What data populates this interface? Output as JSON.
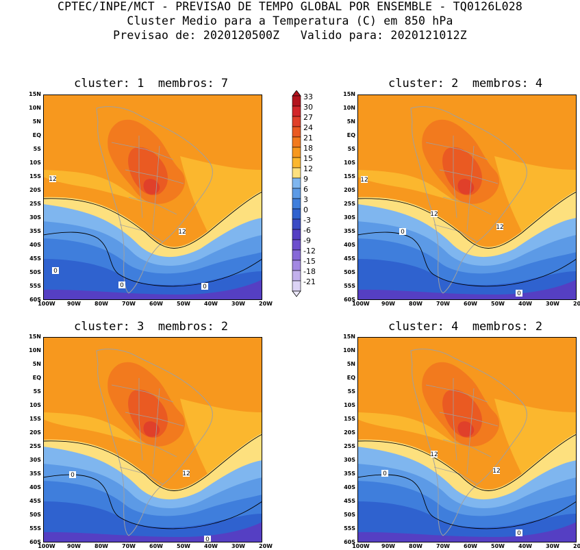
{
  "header": {
    "line1": "CPTEC/INPE/MCT - PREVISAO DE TEMPO GLOBAL POR ENSEMBLE - TQ0126L028",
    "line2": "Cluster Medio para a Temperatura (C) em 850 hPa",
    "line3": "Previsao de: 2020120500Z   Valido para: 2020121012Z"
  },
  "panels": [
    {
      "title": "cluster: 1  membros: 7",
      "contour_labels": [
        "12",
        "12",
        "0",
        "0",
        "0"
      ]
    },
    {
      "title": "cluster: 2  membros: 4",
      "contour_labels": [
        "12",
        "12",
        "12",
        "0",
        "0"
      ]
    },
    {
      "title": "cluster: 3  membros: 2",
      "contour_labels": [
        "12",
        "0",
        "0"
      ]
    },
    {
      "title": "cluster: 4  membros: 2",
      "contour_labels": [
        "12",
        "12",
        "0",
        "0"
      ]
    }
  ],
  "latitude_ticks": [
    "15N",
    "10N",
    "5N",
    "EQ",
    "5S",
    "10S",
    "15S",
    "20S",
    "25S",
    "30S",
    "35S",
    "40S",
    "45S",
    "50S",
    "55S",
    "60S"
  ],
  "longitude_ticks": [
    "100W",
    "90W",
    "80W",
    "70W",
    "60W",
    "50W",
    "40W",
    "30W",
    "20W"
  ],
  "colorbar": {
    "labels": [
      "33",
      "30",
      "27",
      "24",
      "21",
      "18",
      "15",
      "12",
      "9",
      "6",
      "3",
      "0",
      "-3",
      "-6",
      "-9",
      "-12",
      "-15",
      "-18",
      "-21"
    ],
    "colors": [
      "#b3141e",
      "#d2262a",
      "#e0402a",
      "#ea5a22",
      "#f27a1e",
      "#f7981e",
      "#fbb72e",
      "#fde07e",
      "#7fb6ef",
      "#5c9ae6",
      "#3f7edc",
      "#2f62cf",
      "#3b4cc5",
      "#553fc3",
      "#6d4fcd",
      "#8669d8",
      "#a388e2",
      "#c2b0ec",
      "#dcd3f5"
    ]
  },
  "palette": {
    "warm_bg": "#f7981e",
    "hot": "#f27a1e",
    "hotter": "#ea5a22",
    "hottest": "#e0402a",
    "mild": "#fbb72e",
    "yellow": "#fde07e",
    "light_blue": "#7fb6ef",
    "mid_blue": "#5c9ae6",
    "blue": "#3f7edc",
    "deep_blue": "#2f62cf",
    "purple": "#553fc3",
    "land_line": "#a0a0a0",
    "contour": "#000000"
  }
}
